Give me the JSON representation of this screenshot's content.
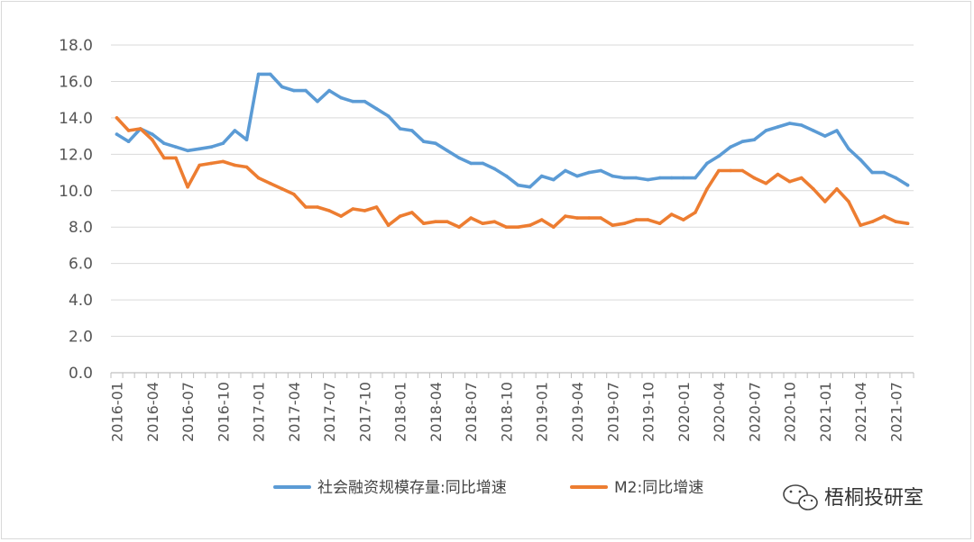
{
  "chart_data": {
    "type": "line",
    "title": "",
    "xlabel": "",
    "ylabel": "",
    "ylim": [
      0,
      18
    ],
    "yticks": [
      "0.0",
      "2.0",
      "4.0",
      "6.0",
      "8.0",
      "10.0",
      "12.0",
      "14.0",
      "16.0",
      "18.0"
    ],
    "x_tick_labels": [
      "2016-01",
      "2016-04",
      "2016-07",
      "2016-10",
      "2017-01",
      "2017-04",
      "2017-07",
      "2017-10",
      "2018-01",
      "2018-04",
      "2018-07",
      "2018-10",
      "2019-01",
      "2019-04",
      "2019-07",
      "2019-10",
      "2020-01",
      "2020-04",
      "2020-07",
      "2020-10",
      "2021-01",
      "2021-04",
      "2021-07"
    ],
    "start_month": "2016-01",
    "grid": true,
    "legend_position": "bottom",
    "series": [
      {
        "name": "社会融资规模存量:同比增速",
        "color": "#5b9bd5",
        "values": [
          13.1,
          12.7,
          13.4,
          13.1,
          12.6,
          12.4,
          12.2,
          12.3,
          12.4,
          12.6,
          13.3,
          12.8,
          16.4,
          16.4,
          15.7,
          15.5,
          15.5,
          14.9,
          15.5,
          15.1,
          14.9,
          14.9,
          14.5,
          14.1,
          13.4,
          13.3,
          12.7,
          12.6,
          12.2,
          11.8,
          11.5,
          11.5,
          11.2,
          10.8,
          10.3,
          10.2,
          10.8,
          10.6,
          11.1,
          10.8,
          11.0,
          11.1,
          10.8,
          10.7,
          10.7,
          10.6,
          10.7,
          10.7,
          10.7,
          10.7,
          11.5,
          11.9,
          12.4,
          12.7,
          12.8,
          13.3,
          13.5,
          13.7,
          13.6,
          13.3,
          13.0,
          13.3,
          12.3,
          11.7,
          11.0,
          11.0,
          10.7,
          10.3
        ]
      },
      {
        "name": "M2:同比增速",
        "color": "#ed7d31",
        "values": [
          14.0,
          13.3,
          13.4,
          12.8,
          11.8,
          11.8,
          10.2,
          11.4,
          11.5,
          11.6,
          11.4,
          11.3,
          10.7,
          10.4,
          10.1,
          9.8,
          9.1,
          9.1,
          8.9,
          8.6,
          9.0,
          8.9,
          9.1,
          8.1,
          8.6,
          8.8,
          8.2,
          8.3,
          8.3,
          8.0,
          8.5,
          8.2,
          8.3,
          8.0,
          8.0,
          8.1,
          8.4,
          8.0,
          8.6,
          8.5,
          8.5,
          8.5,
          8.1,
          8.2,
          8.4,
          8.4,
          8.2,
          8.7,
          8.4,
          8.8,
          10.1,
          11.1,
          11.1,
          11.1,
          10.7,
          10.4,
          10.9,
          10.5,
          10.7,
          10.1,
          9.4,
          10.1,
          9.4,
          8.1,
          8.3,
          8.6,
          8.3,
          8.2
        ]
      }
    ]
  },
  "watermark": {
    "text": "梧桐投研室",
    "icon": "wechat-icon",
    "color": "#333333"
  }
}
